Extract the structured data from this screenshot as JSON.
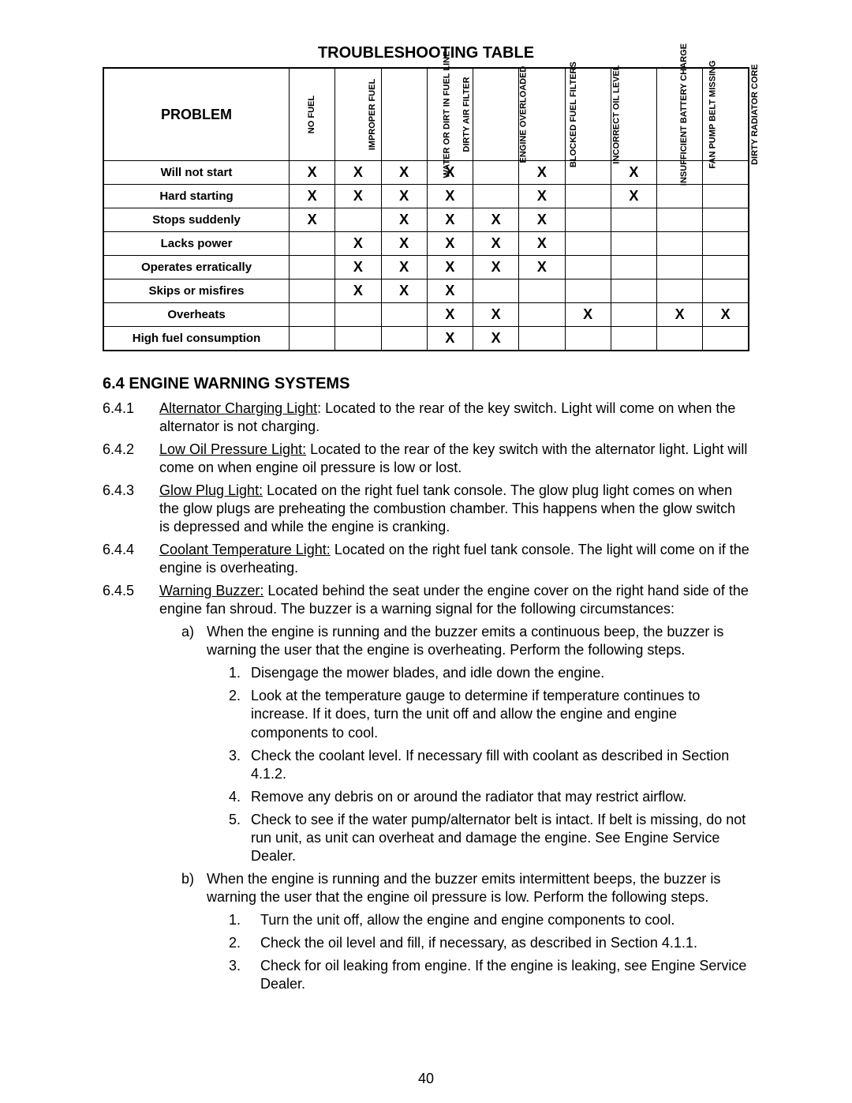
{
  "page_number": "40",
  "table": {
    "title": "TROUBLESHOOTING TABLE",
    "problem_header": "PROBLEM",
    "checkmark": "X",
    "causes": [
      "NO FUEL",
      "IMPROPER FUEL",
      "WATER OR DIRT IN FUEL LINE",
      "DIRTY AIR FILTER",
      "ENGINE OVERLOADED",
      "BLOCKED FUEL FILTERS",
      "INCORRECT OIL LEVEL",
      "INSUFFICIENT BATTERY CHARGE",
      "FAN PUMP BELT MISSING",
      "DIRTY RADIATOR CORE"
    ],
    "rows": [
      {
        "label": "Will not start",
        "marks": [
          1,
          1,
          1,
          1,
          0,
          1,
          0,
          1,
          0,
          0
        ],
        "thick": true
      },
      {
        "label": "Hard starting",
        "marks": [
          1,
          1,
          1,
          1,
          0,
          1,
          0,
          1,
          0,
          0
        ],
        "thick": true
      },
      {
        "label": "Stops suddenly",
        "marks": [
          1,
          0,
          1,
          1,
          1,
          1,
          0,
          0,
          0,
          0
        ],
        "thick": true
      },
      {
        "label": "Lacks power",
        "marks": [
          0,
          1,
          1,
          1,
          1,
          1,
          0,
          0,
          0,
          0
        ],
        "thick": true
      },
      {
        "label": "Operates erratically",
        "marks": [
          0,
          1,
          1,
          1,
          1,
          1,
          0,
          0,
          0,
          0
        ],
        "thick": false
      },
      {
        "label": "Skips or misfires",
        "marks": [
          0,
          1,
          1,
          1,
          0,
          0,
          0,
          0,
          0,
          0
        ],
        "thick": false
      },
      {
        "label": "Overheats",
        "marks": [
          0,
          0,
          0,
          1,
          1,
          0,
          1,
          0,
          1,
          1
        ],
        "thick": false
      },
      {
        "label": "High fuel consumption",
        "marks": [
          0,
          0,
          0,
          1,
          1,
          0,
          0,
          0,
          0,
          0
        ],
        "thick": false
      }
    ]
  },
  "section": {
    "heading_number": "6.4",
    "heading_text": "ENGINE WARNING SYSTEMS",
    "items": [
      {
        "num": "6.4.1",
        "title": "Alternator Charging Light",
        "body": ": Located to the rear of the key switch. Light will come on when the alternator is not charging."
      },
      {
        "num": "6.4.2",
        "title": "Low Oil Pressure Light:",
        "body": " Located to the rear of the key switch with the alternator light. Light will come on when engine oil pressure is low or lost."
      },
      {
        "num": "6.4.3",
        "title": "Glow Plug Light:",
        "body": "  Located on the right fuel tank console.  The glow plug light comes on when the glow plugs are preheating the combustion chamber.  This happens when the glow switch is depressed and while the engine is cranking."
      },
      {
        "num": "6.4.4",
        "title": "Coolant Temperature Light:",
        "body": "  Located on the right fuel tank console.  The light will come on if the engine is overheating."
      },
      {
        "num": "6.4.5",
        "title": "Warning Buzzer:",
        "body": "  Located behind the seat under the engine cover on the right hand side of the engine fan shroud. The buzzer is a warning signal for the following circumstances:",
        "subs": [
          {
            "marker": "a)",
            "text": "When the engine is running and the buzzer emits a continuous beep, the buzzer is warning the user that the engine is overheating.  Perform the following steps.",
            "steps": [
              "Disengage the mower blades, and idle down the engine.",
              "Look at the temperature gauge to determine if temperature continues to increase.  If it does, turn the unit off and allow the engine and engine components to cool.",
              "Check the coolant level.  If necessary fill with coolant as described in Section 4.1.2.",
              "Remove any debris on or around the radiator that may restrict airflow.",
              "Check to see if the water pump/alternator belt is intact.  If belt is missing, do not run unit, as unit can overheat and damage the engine.  See Engine Service Dealer."
            ]
          },
          {
            "marker": "b)",
            "text": "When the engine is running and the buzzer emits intermittent beeps, the buzzer is warning the user that the engine oil pressure is low.  Perform the following steps.",
            "steps_wide": true,
            "steps": [
              "Turn the unit off, allow the engine and engine components to cool.",
              "Check the oil level and fill, if necessary, as described in Section 4.1.1.",
              "Check for oil leaking from engine.  If the engine is leaking, see Engine Service Dealer."
            ]
          }
        ]
      }
    ]
  }
}
